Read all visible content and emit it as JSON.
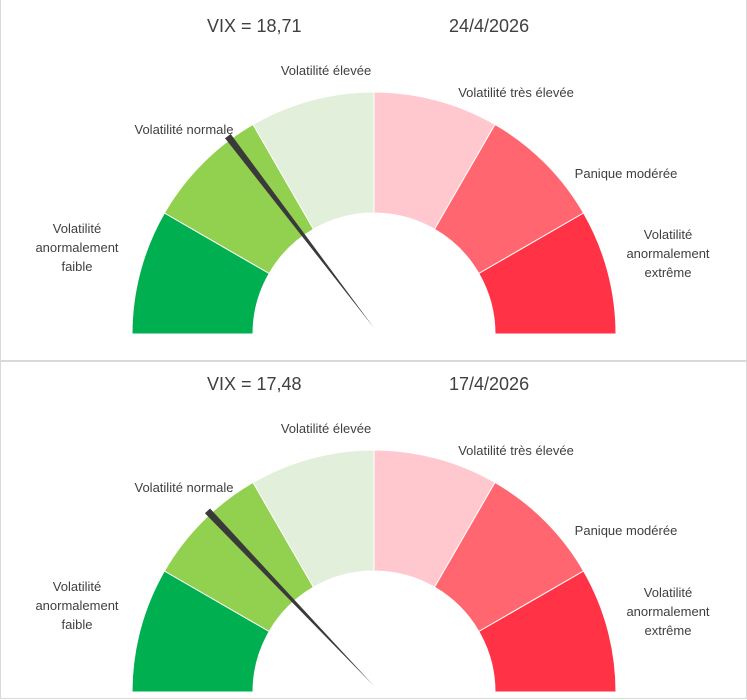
{
  "chart_data": [
    {
      "type": "gauge",
      "vix_text": "VIX = 18,71",
      "value": 18.71,
      "date": "24/4/2026",
      "zones": [
        {
          "label": "Volatilité\nanormalement\nfaible",
          "color": "#00b050",
          "from": 0,
          "to": 14
        },
        {
          "label": "Volatilité normale",
          "color": "#92d050",
          "from": 14,
          "to": 20
        },
        {
          "label": "Volatilité élevée",
          "color": "#e2efda",
          "from": 20,
          "to": 25
        },
        {
          "label": "Volatilité très élevée",
          "color": "#ffc7ce",
          "from": 25,
          "to": 30
        },
        {
          "label": "Panique modérée",
          "color": "#ff6670",
          "from": 30,
          "to": 40
        },
        {
          "label": "Volatilité\nanormalement\nextrême",
          "color": "#ff3246",
          "from": 40,
          "to": 80
        }
      ]
    },
    {
      "type": "gauge",
      "vix_text": "VIX = 17,48",
      "value": 17.48,
      "date": "17/4/2026",
      "zones": [
        {
          "label": "Volatilité\nanormalement\nfaible",
          "color": "#00b050",
          "from": 0,
          "to": 14
        },
        {
          "label": "Volatilité normale",
          "color": "#92d050",
          "from": 14,
          "to": 20
        },
        {
          "label": "Volatilité élevée",
          "color": "#e2efda",
          "from": 20,
          "to": 25
        },
        {
          "label": "Volatilité très élevée",
          "color": "#ffc7ce",
          "from": 25,
          "to": 30
        },
        {
          "label": "Panique modérée",
          "color": "#ff6670",
          "from": 30,
          "to": 40
        },
        {
          "label": "Volatilité\nanormalement\nextrême",
          "color": "#ff3246",
          "from": 40,
          "to": 80
        }
      ]
    }
  ]
}
